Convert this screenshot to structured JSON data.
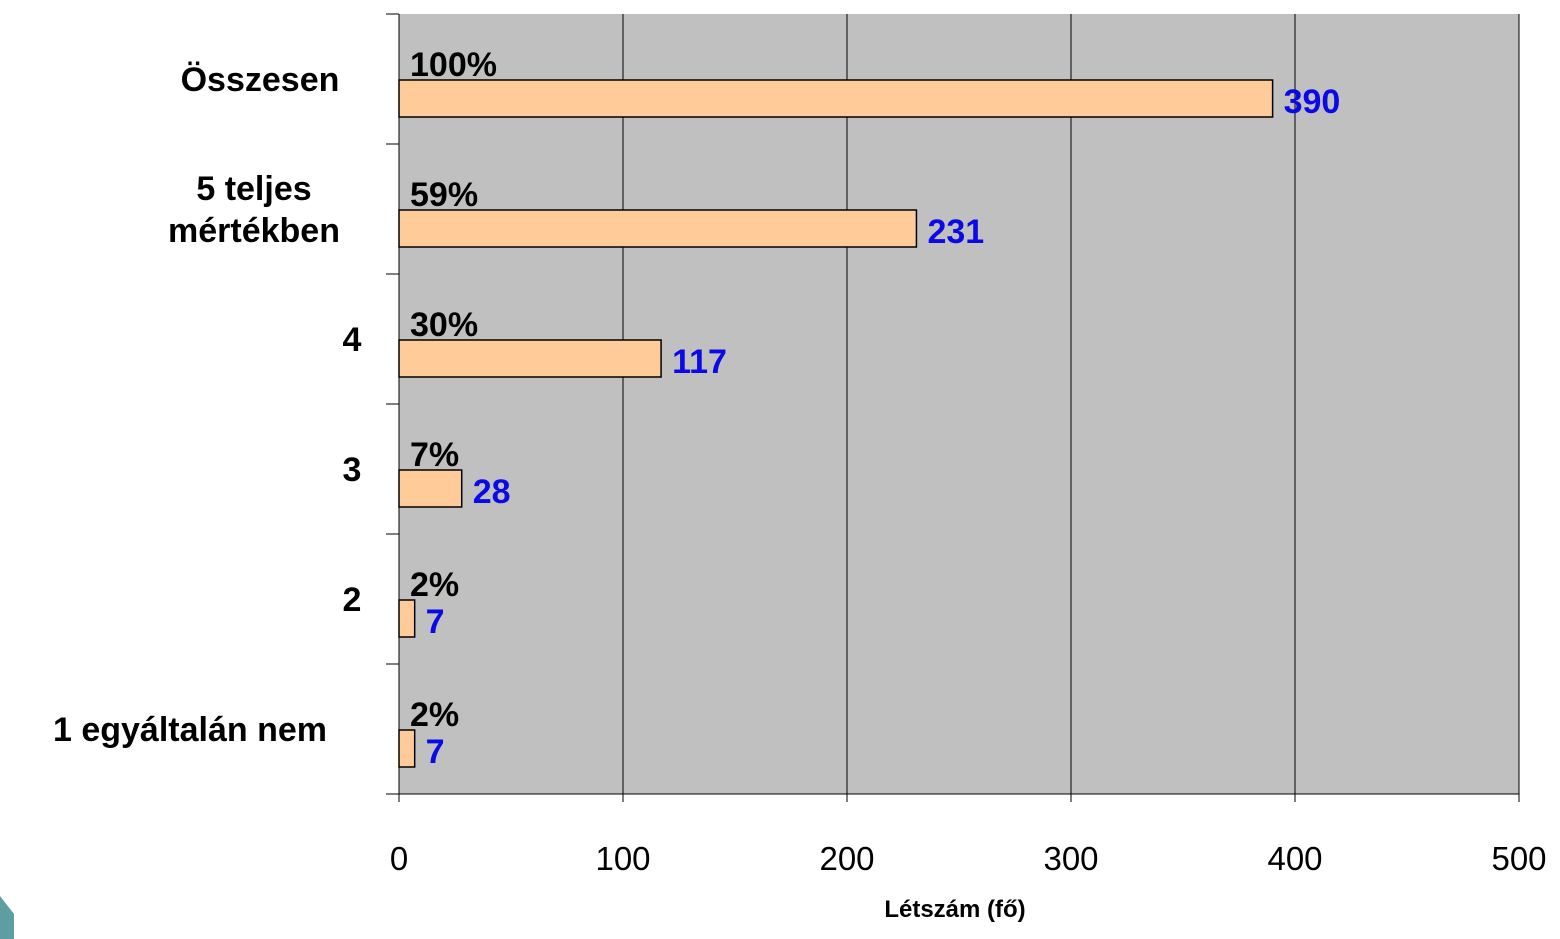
{
  "chart_data": {
    "type": "bar",
    "orientation": "horizontal",
    "categories": [
      [
        "1 egyáltalán nem"
      ],
      [
        "2"
      ],
      [
        "3"
      ],
      [
        "4"
      ],
      [
        "5 teljes",
        "mértékben"
      ],
      [
        "Összesen"
      ]
    ],
    "values": [
      7,
      7,
      28,
      117,
      231,
      390
    ],
    "percent_labels": [
      "2%",
      "2%",
      "7%",
      "30%",
      "59%",
      "100%"
    ],
    "value_labels": [
      "7",
      "7",
      "28",
      "117",
      "231",
      "390"
    ],
    "x_ticks": [
      "0",
      "100",
      "200",
      "300",
      "400",
      "500"
    ],
    "xlabel": "Létszám (fő)",
    "xlim": [
      0,
      500
    ],
    "grid": "vertical",
    "colors": {
      "plot_background": "#c0c0c0",
      "bar_fill": "#ffcc99",
      "bar_stroke": "#000000",
      "value_label": "#0a0ae6",
      "gridline": "#000000"
    }
  }
}
